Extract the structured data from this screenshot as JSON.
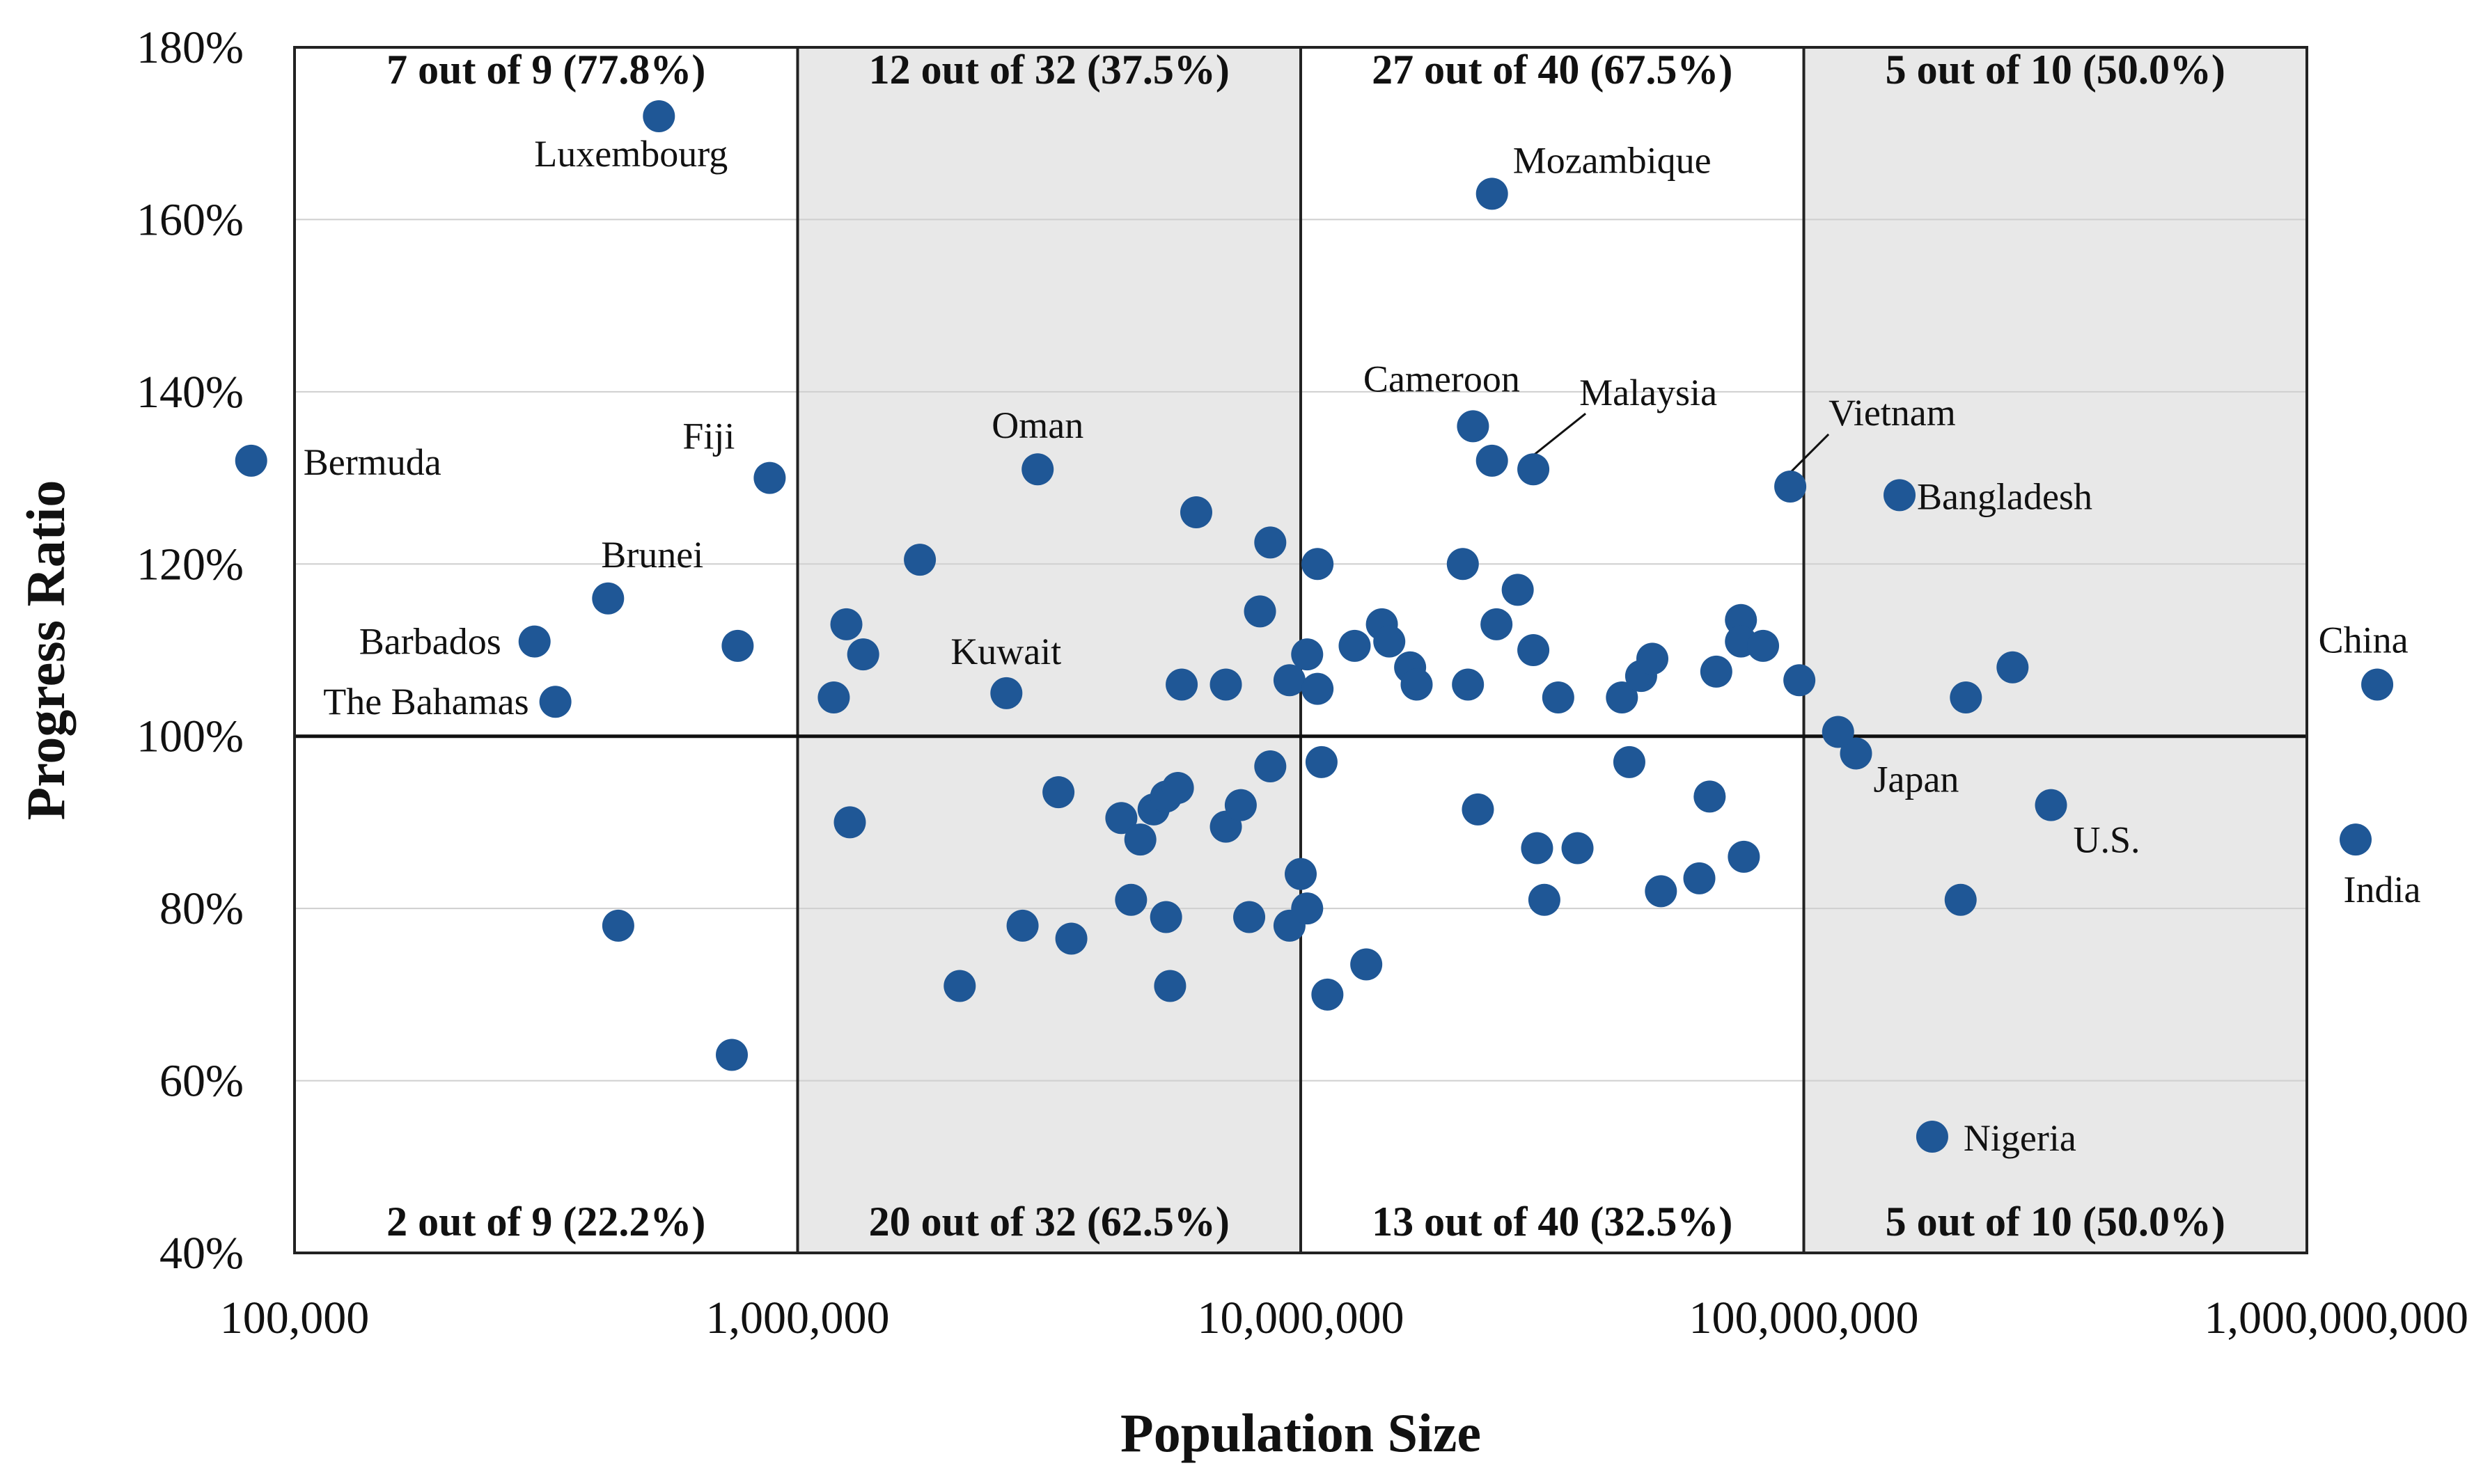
{
  "chart_data": {
    "type": "scatter",
    "xlabel": "Population Size",
    "ylabel": "Progress Ratio",
    "x_scale": "log",
    "xlim": [
      100000,
      1000000000
    ],
    "ylim": [
      40,
      180
    ],
    "x_ticks": [
      100000,
      1000000,
      10000000,
      100000000,
      1000000000
    ],
    "x_tick_labels": [
      "100,000",
      "1,000,000",
      "10,000,000",
      "100,000,000",
      "1,000,000,000"
    ],
    "y_ticks": [
      40,
      60,
      80,
      100,
      120,
      140,
      160,
      180
    ],
    "y_tick_labels": [
      "40%",
      "60%",
      "80%",
      "100%",
      "120%",
      "140%",
      "160%",
      "180%"
    ],
    "reference_line_y": 100,
    "band_boundaries": [
      1000000,
      10000000,
      100000000
    ],
    "shaded_bands": [
      1,
      3
    ],
    "grid": true,
    "marker_color": "#1f5796",
    "band_color": "#e8e8e8",
    "top_counts": [
      "7 out of 9 (77.8%)",
      "12 out of 32 (37.5%)",
      "27 out of 40 (67.5%)",
      "5 out of 10 (50.0%)"
    ],
    "bottom_counts": [
      "2 out of 9 (22.2%)",
      "20 out of 32 (62.5%)",
      "13 out of 40 (32.5%)",
      "5 out of 10 (50.0%)"
    ],
    "points": [
      {
        "x": 530000,
        "y": 172,
        "label": "Luxembourg"
      },
      {
        "x": 82000,
        "y": 132,
        "label": "Bermuda"
      },
      {
        "x": 880000,
        "y": 130,
        "label": "Fiji"
      },
      {
        "x": 420000,
        "y": 116,
        "label": "Brunei"
      },
      {
        "x": 300000,
        "y": 111,
        "label": "Barbados"
      },
      {
        "x": 330000,
        "y": 104,
        "label": "The Bahamas"
      },
      {
        "x": 3000000,
        "y": 131,
        "label": "Oman"
      },
      {
        "x": 2600000,
        "y": 105,
        "label": "Kuwait"
      },
      {
        "x": 24000000,
        "y": 163,
        "label": "Mozambique"
      },
      {
        "x": 22000000,
        "y": 136,
        "label": "Cameroon"
      },
      {
        "x": 29000000,
        "y": 131,
        "label": "Malaysia"
      },
      {
        "x": 94000000,
        "y": 129,
        "label": "Vietnam"
      },
      {
        "x": 155000000,
        "y": 128,
        "label": "Bangladesh"
      },
      {
        "x": 1380000000,
        "y": 106,
        "label": "China"
      },
      {
        "x": 1250000000,
        "y": 88,
        "label": "India"
      },
      {
        "x": 310000000,
        "y": 92,
        "label": "U.S."
      },
      {
        "x": 127000000,
        "y": 98,
        "label": "Japan"
      },
      {
        "x": 180000000,
        "y": 53.5,
        "label": "Nigeria"
      },
      {
        "x": 760000,
        "y": 110.5
      },
      {
        "x": 440000,
        "y": 78
      },
      {
        "x": 740000,
        "y": 63
      },
      {
        "x": 1750000,
        "y": 120.5
      },
      {
        "x": 1250000,
        "y": 113
      },
      {
        "x": 1350000,
        "y": 109.5
      },
      {
        "x": 1180000,
        "y": 104.5
      },
      {
        "x": 1270000,
        "y": 90
      },
      {
        "x": 2100000,
        "y": 71
      },
      {
        "x": 2800000,
        "y": 78
      },
      {
        "x": 3300000,
        "y": 93.5
      },
      {
        "x": 3500000,
        "y": 76.5
      },
      {
        "x": 4400000,
        "y": 90.5
      },
      {
        "x": 4600000,
        "y": 81
      },
      {
        "x": 4800000,
        "y": 88
      },
      {
        "x": 5100000,
        "y": 91.5
      },
      {
        "x": 5400000,
        "y": 93
      },
      {
        "x": 5700000,
        "y": 94
      },
      {
        "x": 5400000,
        "y": 79
      },
      {
        "x": 5500000,
        "y": 71
      },
      {
        "x": 5800000,
        "y": 106
      },
      {
        "x": 6200000,
        "y": 126
      },
      {
        "x": 7100000,
        "y": 106
      },
      {
        "x": 7100000,
        "y": 89.5
      },
      {
        "x": 7600000,
        "y": 92
      },
      {
        "x": 7900000,
        "y": 79
      },
      {
        "x": 8300000,
        "y": 114.5
      },
      {
        "x": 8700000,
        "y": 122.5
      },
      {
        "x": 8700000,
        "y": 96.5
      },
      {
        "x": 9500000,
        "y": 106.5
      },
      {
        "x": 9500000,
        "y": 78
      },
      {
        "x": 10000000,
        "y": 84
      },
      {
        "x": 10300000,
        "y": 109.5
      },
      {
        "x": 10300000,
        "y": 80
      },
      {
        "x": 10800000,
        "y": 120
      },
      {
        "x": 10800000,
        "y": 105.5
      },
      {
        "x": 11000000,
        "y": 97
      },
      {
        "x": 11300000,
        "y": 70
      },
      {
        "x": 12800000,
        "y": 110.5
      },
      {
        "x": 13500000,
        "y": 73.5
      },
      {
        "x": 14500000,
        "y": 113
      },
      {
        "x": 15000000,
        "y": 111
      },
      {
        "x": 16500000,
        "y": 108
      },
      {
        "x": 17000000,
        "y": 106
      },
      {
        "x": 21000000,
        "y": 120
      },
      {
        "x": 21500000,
        "y": 106
      },
      {
        "x": 22500000,
        "y": 91.5
      },
      {
        "x": 24000000,
        "y": 132
      },
      {
        "x": 24500000,
        "y": 113
      },
      {
        "x": 27000000,
        "y": 117
      },
      {
        "x": 29000000,
        "y": 110
      },
      {
        "x": 29500000,
        "y": 87
      },
      {
        "x": 30500000,
        "y": 81
      },
      {
        "x": 32500000,
        "y": 104.5
      },
      {
        "x": 35500000,
        "y": 87
      },
      {
        "x": 43500000,
        "y": 104.5
      },
      {
        "x": 45000000,
        "y": 97
      },
      {
        "x": 47500000,
        "y": 107
      },
      {
        "x": 50000000,
        "y": 109
      },
      {
        "x": 52000000,
        "y": 82
      },
      {
        "x": 62000000,
        "y": 83.5
      },
      {
        "x": 65000000,
        "y": 93
      },
      {
        "x": 67000000,
        "y": 107.5
      },
      {
        "x": 75000000,
        "y": 113.5
      },
      {
        "x": 75000000,
        "y": 111
      },
      {
        "x": 76000000,
        "y": 86
      },
      {
        "x": 83000000,
        "y": 110.5
      },
      {
        "x": 98000000,
        "y": 106.5
      },
      {
        "x": 117000000,
        "y": 100.5
      },
      {
        "x": 205000000,
        "y": 81
      },
      {
        "x": 210000000,
        "y": 104.5
      },
      {
        "x": 260000000,
        "y": 108
      }
    ]
  }
}
